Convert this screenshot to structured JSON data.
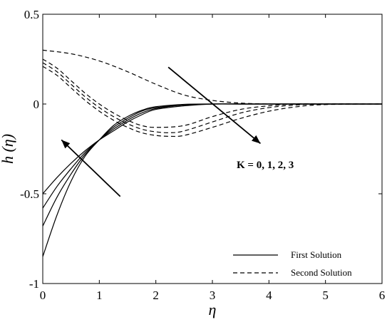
{
  "chart_data": {
    "type": "line",
    "xlabel": "η",
    "ylabel": "h (η)",
    "xlim": [
      0,
      6
    ],
    "ylim": [
      -1,
      0.5
    ],
    "xticks": [
      "0",
      "1",
      "2",
      "3",
      "4",
      "5",
      "6"
    ],
    "yticks": [
      "-1",
      "-0.5",
      "0",
      "0.5"
    ],
    "grid": false,
    "legend": {
      "position": "bottom-right",
      "entries": [
        {
          "label": "First Solution",
          "style": "solid"
        },
        {
          "label": "Second Solution",
          "style": "dashed"
        }
      ]
    },
    "annotation": "K = 0, 1, 2, 3",
    "series_groups": [
      {
        "legend": "First Solution",
        "style": "solid",
        "series": [
          {
            "x": [
              0,
              0.25,
              0.5,
              0.75,
              1.0,
              1.25,
              1.5,
              1.75,
              2.0,
              2.5,
              3.0,
              3.5,
              4.0,
              5.0,
              6.0
            ],
            "y": [
              -0.5,
              -0.41,
              -0.33,
              -0.26,
              -0.2,
              -0.15,
              -0.1,
              -0.06,
              -0.03,
              -0.01,
              0.0,
              0.0,
              0.0,
              0.0,
              0.0
            ]
          },
          {
            "x": [
              0,
              0.25,
              0.5,
              0.75,
              1.0,
              1.25,
              1.5,
              1.75,
              2.0,
              2.5,
              3.0,
              3.5,
              4.0,
              5.0,
              6.0
            ],
            "y": [
              -0.58,
              -0.46,
              -0.36,
              -0.27,
              -0.2,
              -0.14,
              -0.09,
              -0.05,
              -0.025,
              -0.005,
              0.0,
              0.0,
              0.0,
              0.0,
              0.0
            ]
          },
          {
            "x": [
              0,
              0.25,
              0.5,
              0.75,
              1.0,
              1.25,
              1.5,
              1.75,
              2.0,
              2.5,
              3.0,
              3.5,
              4.0,
              5.0,
              6.0
            ],
            "y": [
              -0.68,
              -0.52,
              -0.39,
              -0.28,
              -0.2,
              -0.13,
              -0.08,
              -0.04,
              -0.02,
              -0.003,
              0.0,
              0.0,
              0.0,
              0.0,
              0.0
            ]
          },
          {
            "x": [
              0,
              0.25,
              0.5,
              0.75,
              1.0,
              1.25,
              1.5,
              1.75,
              2.0,
              2.5,
              3.0,
              3.5,
              4.0,
              5.0,
              6.0
            ],
            "y": [
              -0.85,
              -0.62,
              -0.43,
              -0.29,
              -0.2,
              -0.12,
              -0.07,
              -0.035,
              -0.015,
              -0.002,
              0.0,
              0.0,
              0.0,
              0.0,
              0.0
            ]
          }
        ]
      },
      {
        "legend": "Second Solution",
        "style": "dashed",
        "series": [
          {
            "x": [
              0,
              0.5,
              1.0,
              1.5,
              2.0,
              2.5,
              3.0,
              3.5,
              4.0,
              4.5,
              5.0,
              6.0
            ],
            "y": [
              0.3,
              0.28,
              0.24,
              0.18,
              0.11,
              0.05,
              0.02,
              0.005,
              0.0,
              0.0,
              0.0,
              0.0
            ]
          },
          {
            "x": [
              0,
              0.25,
              0.5,
              0.75,
              1.0,
              1.25,
              1.5,
              1.75,
              2.0,
              2.5,
              3.0,
              3.5,
              4.0,
              4.5,
              5.0,
              6.0
            ],
            "y": [
              0.25,
              0.2,
              0.13,
              0.06,
              0.0,
              -0.05,
              -0.09,
              -0.12,
              -0.13,
              -0.12,
              -0.07,
              -0.03,
              -0.01,
              0.0,
              0.0,
              0.0
            ]
          },
          {
            "x": [
              0,
              0.25,
              0.5,
              0.75,
              1.0,
              1.25,
              1.5,
              1.75,
              2.0,
              2.25,
              2.5,
              3.0,
              3.5,
              4.0,
              4.5,
              5.0,
              6.0
            ],
            "y": [
              0.23,
              0.18,
              0.11,
              0.04,
              -0.02,
              -0.07,
              -0.11,
              -0.14,
              -0.155,
              -0.16,
              -0.15,
              -0.1,
              -0.05,
              -0.02,
              -0.005,
              0.0,
              0.0
            ]
          },
          {
            "x": [
              0,
              0.25,
              0.5,
              0.75,
              1.0,
              1.25,
              1.5,
              1.75,
              2.0,
              2.25,
              2.5,
              3.0,
              3.5,
              4.0,
              4.5,
              5.0,
              6.0
            ],
            "y": [
              0.21,
              0.16,
              0.09,
              0.02,
              -0.04,
              -0.09,
              -0.13,
              -0.16,
              -0.175,
              -0.18,
              -0.175,
              -0.13,
              -0.08,
              -0.04,
              -0.015,
              -0.003,
              0.0
            ]
          }
        ]
      }
    ]
  }
}
